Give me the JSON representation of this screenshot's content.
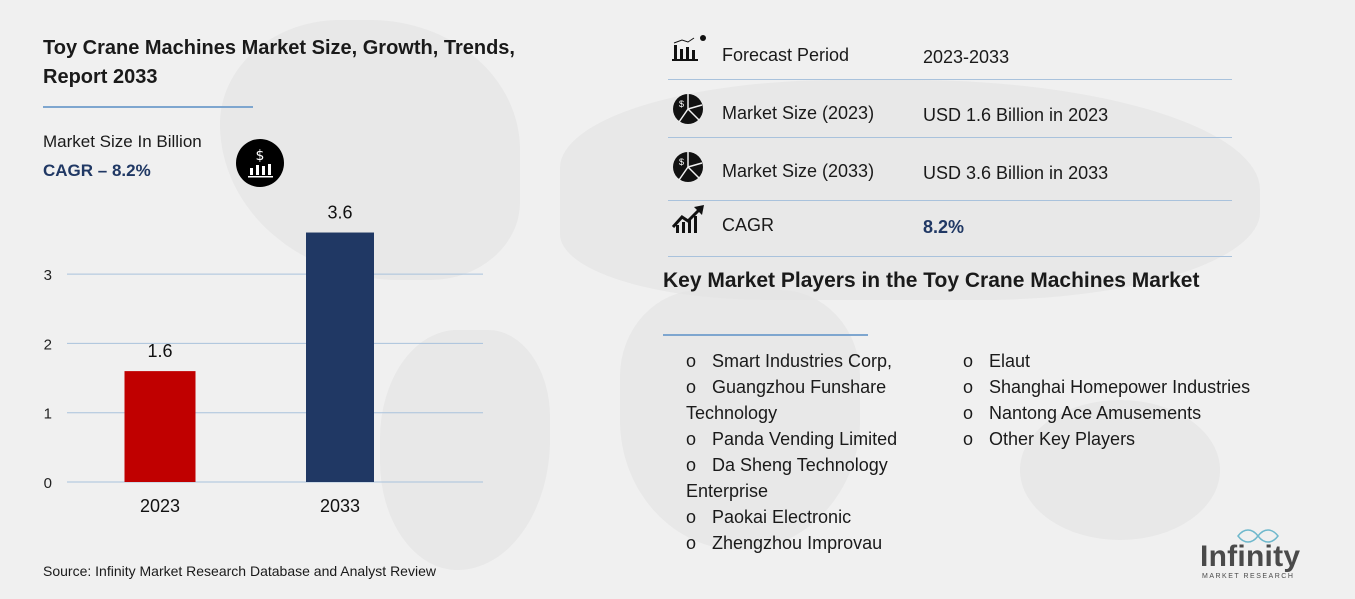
{
  "title": "Toy Crane Machines Market Size, Growth, Trends, Report 2033",
  "market_size_label": "Market Size In Billion",
  "cagr_label": "CAGR –",
  "cagr_value": "8.2%",
  "source": "Source: Infinity Market Research Database and Analyst Review",
  "stats": [
    {
      "icon": "bar-chart-pin-icon",
      "label": "Forecast Period",
      "value": "2023-2033"
    },
    {
      "icon": "dollar-pie-chart-icon",
      "label": "Market Size (2023)",
      "value": "USD 1.6 Billion in 2023"
    },
    {
      "icon": "dollar-pie-chart-icon",
      "label": "Market Size (2033)",
      "value": "USD 3.6 Billion in 2033"
    },
    {
      "icon": "growth-arrow-chart-icon",
      "label": "CAGR",
      "value": "8.2%"
    }
  ],
  "players_heading": "Key Market Players in the Toy Crane Machines Market",
  "players_col1": [
    "Smart Industries Corp,",
    "Guangzhou Funshare",
    "Technology",
    "Panda Vending Limited",
    "Da Sheng Technology",
    "Enterprise",
    "Paokai Electronic",
    "Zhengzhou Improvau"
  ],
  "players_col1_bullets": [
    true,
    true,
    false,
    true,
    true,
    false,
    true,
    true
  ],
  "players_col2": [
    "Elaut",
    "Shanghai Homepower Industries",
    "Nantong Ace Amusements",
    "Other Key Players"
  ],
  "bullet": "o",
  "logo": {
    "name": "Infinity",
    "sub": "MARKET RESEARCH"
  },
  "colors": {
    "bar_2023": "#c00000",
    "bar_2033": "#203864",
    "accent_line": "#7ea6cf",
    "cagr_text": "#203864"
  },
  "chart_data": {
    "type": "bar",
    "categories": [
      "2023",
      "2033"
    ],
    "values": [
      1.6,
      3.6
    ],
    "data_labels": [
      "1.6",
      "3.6"
    ],
    "yticks": [
      "0",
      "1",
      "2",
      "3"
    ],
    "ylim": [
      0,
      3.6
    ],
    "grid": true,
    "title": "",
    "xlabel": "",
    "ylabel": ""
  }
}
